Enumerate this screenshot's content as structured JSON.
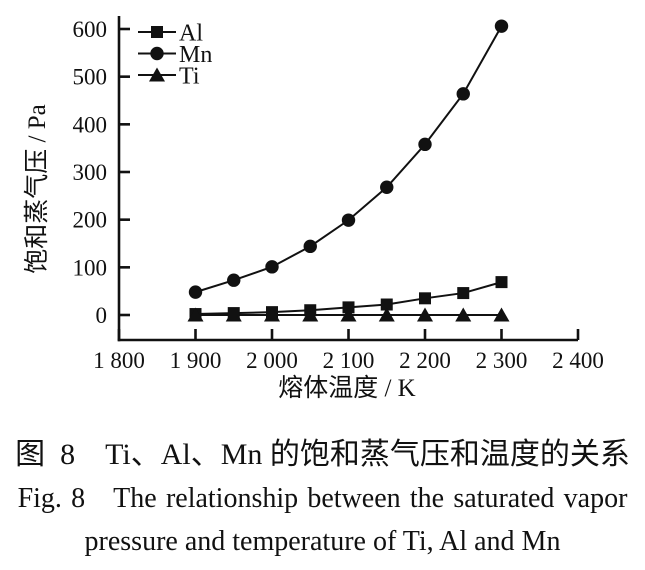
{
  "figure": {
    "caption_cn": "图 8　Ti、Al、Mn 的饱和蒸气压和温度的关系",
    "caption_en_line1": "Fig. 8 The relationship between the saturated vapor",
    "caption_en_line2": "pressure and temperature of Ti, Al and Mn"
  },
  "chart_data": {
    "type": "line",
    "title": "",
    "xlabel": "熔体温度 / K",
    "ylabel": "饱和蒸气压 / Pa",
    "xlim": [
      1800,
      2400
    ],
    "ylim": [
      0,
      600
    ],
    "grid": false,
    "legend_position": "top-left",
    "xtick_values": [
      1800,
      1900,
      2000,
      2100,
      2200,
      2300,
      2400
    ],
    "xtick_labels": [
      "1 800",
      "1 900",
      "2 000",
      "2 100",
      "2 200",
      "2 300",
      "2 400"
    ],
    "ytick_values": [
      0,
      100,
      200,
      300,
      400,
      500,
      600
    ],
    "x": [
      1900,
      1950,
      2000,
      2050,
      2100,
      2150,
      2200,
      2250,
      2300
    ],
    "series": [
      {
        "name": "Al",
        "marker": "square",
        "values": [
          2,
          4,
          6,
          10,
          16,
          22,
          35,
          46,
          69
        ]
      },
      {
        "name": "Mn",
        "marker": "circle",
        "values": [
          48,
          73,
          101,
          144,
          199,
          268,
          358,
          464,
          606
        ]
      },
      {
        "name": "Ti",
        "marker": "triangle",
        "values": [
          0,
          0,
          0,
          0,
          0,
          0,
          0,
          0,
          0
        ]
      }
    ],
    "line_color": "#111111"
  }
}
